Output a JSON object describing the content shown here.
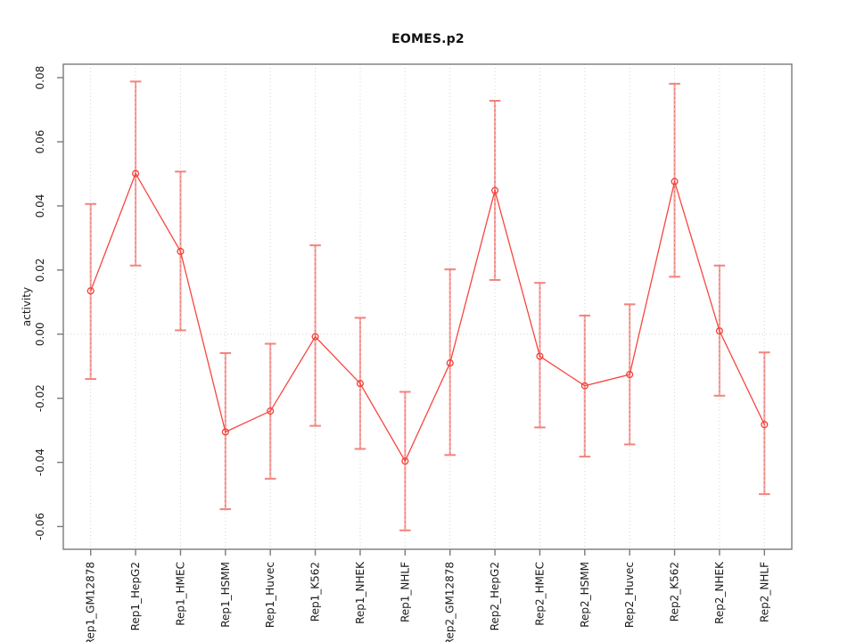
{
  "chart_data": {
    "type": "line",
    "subtype": "points-with-error-bars",
    "title": "EOMES.p2",
    "xlabel": "",
    "ylabel": "activity",
    "legend": "none",
    "grid": "dotted vertical line at every category and dotted horizontal line at y=0",
    "categories": [
      "Rep1_GM12878",
      "Rep1_HepG2",
      "Rep1_HMEC",
      "Rep1_HSMM",
      "Rep1_Huvec",
      "Rep1_K562",
      "Rep1_NHEK",
      "Rep1_NHLF",
      "Rep2_GM12878",
      "Rep2_HepG2",
      "Rep2_HMEC",
      "Rep2_HSMM",
      "Rep2_Huvec",
      "Rep2_K562",
      "Rep2_NHEK",
      "Rep2_NHLF"
    ],
    "series": [
      {
        "name": "activity",
        "values": [
          0.0135,
          0.0501,
          0.0258,
          -0.0305,
          -0.024,
          -0.0008,
          -0.0154,
          -0.0396,
          -0.009,
          0.0448,
          -0.0069,
          -0.0161,
          -0.0126,
          0.0476,
          0.001,
          -0.0282
        ],
        "lower": [
          -0.014,
          0.0214,
          0.0012,
          -0.0546,
          -0.0451,
          -0.0286,
          -0.0358,
          -0.0612,
          -0.0377,
          0.0169,
          -0.0291,
          -0.0382,
          -0.0344,
          0.0179,
          -0.0192,
          -0.0499
        ],
        "upper": [
          0.0406,
          0.0788,
          0.0507,
          -0.0059,
          -0.003,
          0.0277,
          0.0051,
          -0.018,
          0.0202,
          0.0728,
          0.016,
          0.0058,
          0.0093,
          0.0781,
          0.0214,
          -0.0057
        ]
      }
    ],
    "yticks": [
      0.08,
      0.06,
      0.04,
      0.02,
      0.0,
      -0.02,
      -0.04,
      -0.06
    ],
    "ylim": [
      -0.0671,
      0.0842
    ],
    "zero_line": 0.0,
    "colors": {
      "series_line": "#f8453f",
      "marker_stroke": "#f2403c",
      "error_bar_line": "#f7a9a5",
      "error_bar_dash_overlay": "#e6736d",
      "error_bar_cap": "#f3837d",
      "gridline": "#d4d4d4",
      "zero_gridline": "#d4d4d4",
      "frame": "#7a7a7a",
      "tick": "#7a7a7a",
      "tick_label": "#1c1c1c",
      "title": "#111111"
    }
  }
}
